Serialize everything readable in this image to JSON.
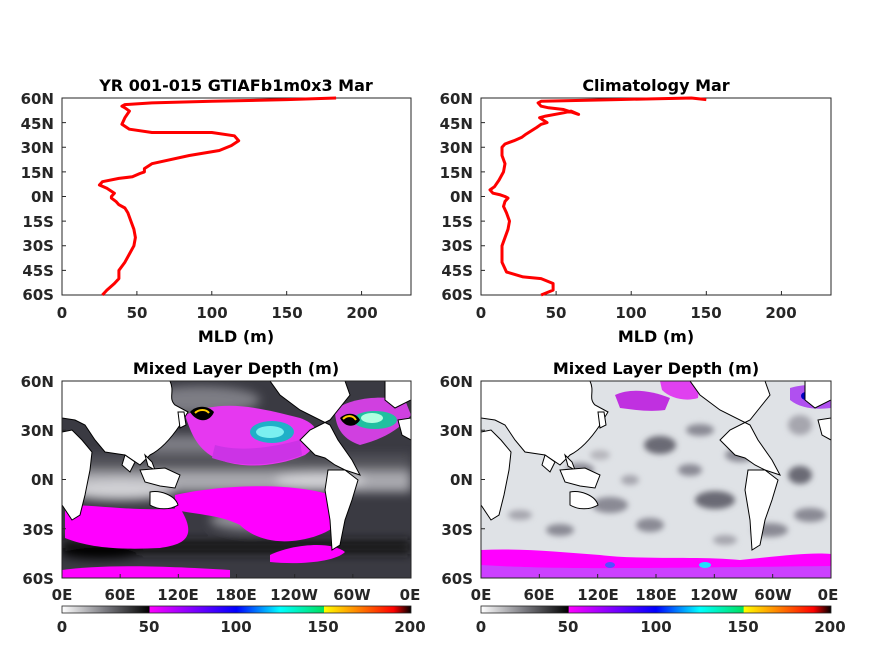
{
  "chart_data": [
    {
      "type": "line",
      "title": "YR 001-015 GTIAFb1m0x3 Mar",
      "xlabel": "MLD (m)",
      "ylabel": "",
      "xlim": [
        0,
        233
      ],
      "ylim": [
        -60,
        60
      ],
      "x_ticks": [
        "0",
        "50",
        "100",
        "150",
        "200"
      ],
      "y_ticks": [
        "60N",
        "45N",
        "30N",
        "15N",
        "0N",
        "15S",
        "30S",
        "45S",
        "60S"
      ],
      "color": "#ff0000",
      "series": [
        {
          "x": [
            27,
            30,
            35,
            38,
            38,
            42,
            45,
            48,
            49,
            48,
            46,
            44,
            42,
            38,
            36,
            33,
            33,
            35,
            30,
            25,
            27,
            38,
            47,
            52,
            55,
            55,
            60,
            85,
            105,
            113,
            118,
            115,
            100,
            80,
            60,
            45,
            40,
            42,
            45,
            42,
            40,
            42,
            60,
            100,
            150,
            183
          ],
          "y": [
            -60,
            -57,
            -53,
            -50,
            -45,
            -40,
            -35,
            -30,
            -25,
            -20,
            -15,
            -10,
            -7,
            -5,
            -3,
            -1,
            0,
            2,
            5,
            7,
            9,
            11,
            12,
            14,
            15,
            17,
            20,
            25,
            28,
            31,
            34,
            37,
            39,
            39,
            39,
            41,
            44,
            48,
            52,
            54,
            55,
            56,
            57,
            58,
            59,
            60
          ]
        }
      ]
    },
    {
      "type": "line",
      "title": "Climatology Mar",
      "xlabel": "MLD (m)",
      "ylabel": "",
      "xlim": [
        0,
        233
      ],
      "ylim": [
        -60,
        60
      ],
      "x_ticks": [
        "0",
        "50",
        "100",
        "150",
        "200"
      ],
      "y_ticks": [
        "60N",
        "45N",
        "30N",
        "15N",
        "0N",
        "15S",
        "30S",
        "45S",
        "60S"
      ],
      "color": "#ff0000",
      "series": [
        {
          "x": [
            40,
            48,
            48,
            40,
            28,
            17,
            14,
            14,
            18,
            19,
            17,
            15,
            16,
            18,
            16,
            13,
            8,
            6,
            9,
            12,
            15,
            16,
            14,
            14,
            16,
            22,
            27,
            30,
            37,
            40,
            44,
            39,
            43,
            55,
            60,
            65,
            55,
            45,
            40,
            38,
            40,
            90,
            140,
            150
          ],
          "y": [
            -60,
            -57,
            -53,
            -50,
            -49,
            -46,
            -40,
            -30,
            -20,
            -15,
            -10,
            -6,
            -3,
            -1,
            0,
            1,
            2,
            4,
            6,
            10,
            15,
            20,
            25,
            30,
            32,
            34,
            36,
            38,
            42,
            44,
            45,
            48,
            49,
            51,
            52,
            50,
            53,
            54,
            55,
            57,
            58,
            59,
            60,
            59
          ]
        }
      ]
    },
    {
      "type": "heatmap",
      "title": "Mixed Layer Depth (m)",
      "y_ticks": [
        "60N",
        "30N",
        "0N",
        "30S",
        "60S"
      ],
      "x_ticks": [
        "0E",
        "60E",
        "120E",
        "180E",
        "120W",
        "60W",
        "0E"
      ],
      "xlim": [
        0,
        360
      ],
      "ylim": [
        -60,
        60
      ],
      "colorbar": {
        "ticks": [
          "0",
          "50",
          "100",
          "150",
          "200"
        ],
        "range": [
          0,
          200
        ],
        "colors": [
          "#ffffff",
          "#7a7a80",
          "#000000",
          "#ff00ff",
          "#8000ff",
          "#0000ff",
          "#00ffff",
          "#00e060",
          "#ffff00",
          "#ff8000",
          "#ff0000",
          "#000000"
        ]
      },
      "land_color": "#ffffff",
      "features": [
        {
          "kind": "deep mixing",
          "lon": 310,
          "lat": 40,
          "value": 150
        },
        {
          "kind": "deep mixing",
          "lon": 150,
          "lat": 40,
          "value": 150
        },
        {
          "kind": "deep mixing",
          "lon": 190,
          "lat": 30,
          "value": 110
        },
        {
          "kind": "subtropical band",
          "lat": 25,
          "value": 65
        },
        {
          "kind": "southern band",
          "lat": -50,
          "value": 70
        },
        {
          "kind": "southern band",
          "lat": -30,
          "value": 60
        }
      ]
    },
    {
      "type": "heatmap",
      "title": "Mixed Layer Depth (m)",
      "y_ticks": [
        "60N",
        "30N",
        "0N",
        "30S",
        "60S"
      ],
      "x_ticks": [
        "0E",
        "60E",
        "120E",
        "180E",
        "120W",
        "60W",
        "0E"
      ],
      "xlim": [
        0,
        360
      ],
      "ylim": [
        -60,
        60
      ],
      "colorbar": {
        "ticks": [
          "0",
          "50",
          "100",
          "150",
          "200"
        ],
        "range": [
          0,
          200
        ],
        "colors": [
          "#ffffff",
          "#7a7a80",
          "#000000",
          "#ff00ff",
          "#8000ff",
          "#0000ff",
          "#00ffff",
          "#00e060",
          "#ffff00",
          "#ff8000",
          "#ff0000",
          "#000000"
        ]
      },
      "land_color": "#ffffff",
      "features": [
        {
          "kind": "southern band",
          "lat": -55,
          "value": 60
        },
        {
          "kind": "north atlantic",
          "lon": 320,
          "lat": 55,
          "value": 80
        },
        {
          "kind": "north pacific",
          "lon": 180,
          "lat": 55,
          "value": 60
        }
      ]
    }
  ]
}
